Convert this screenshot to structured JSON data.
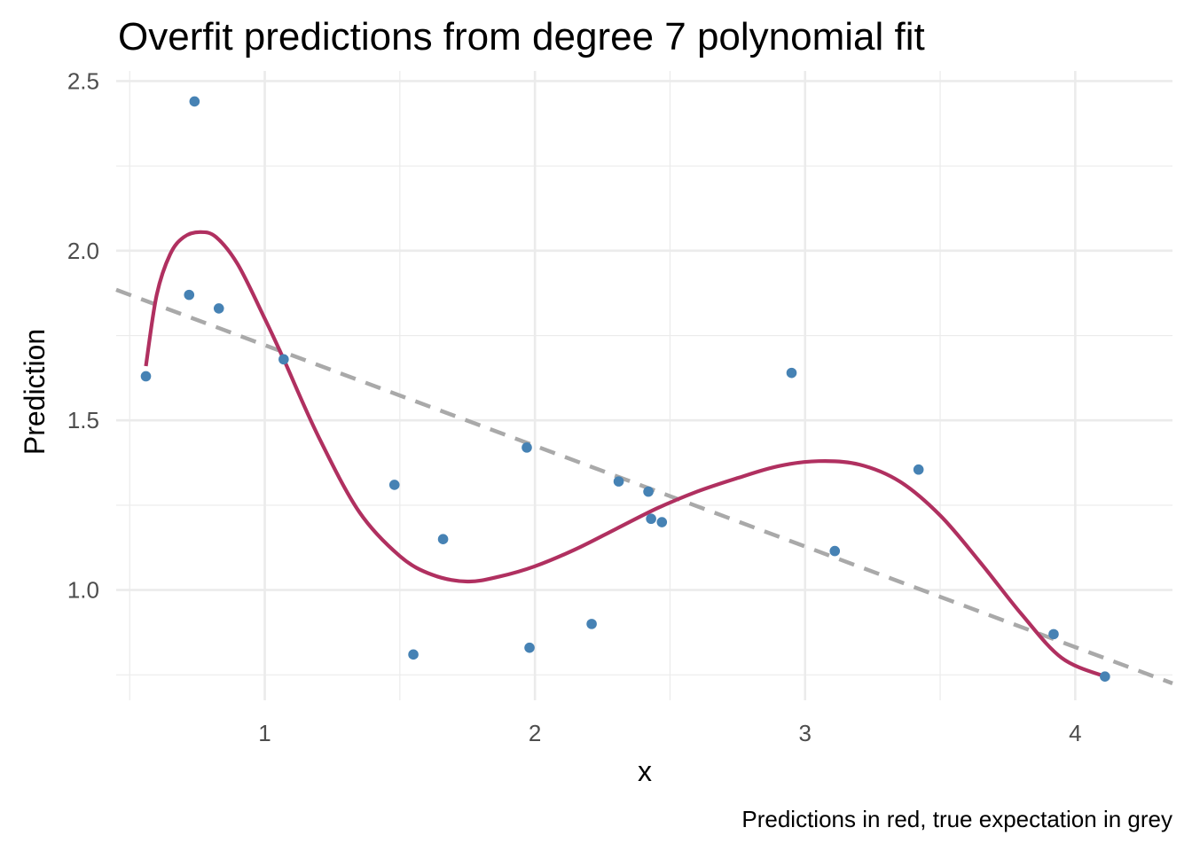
{
  "chart_data": {
    "type": "scatter",
    "title": "Overfit predictions from degree 7 polynomial fit",
    "xlabel": "x",
    "ylabel": "Prediction",
    "caption": "Predictions in red, true expectation in grey",
    "xlim": [
      0.45,
      4.36
    ],
    "ylim": [
      0.675,
      2.53
    ],
    "x_ticks": [
      1,
      2,
      3,
      4
    ],
    "x_tick_labels": [
      "1",
      "2",
      "3",
      "4"
    ],
    "y_ticks": [
      1.0,
      1.5,
      2.0,
      2.5
    ],
    "y_tick_labels": [
      "1.0",
      "1.5",
      "2.0",
      "2.5"
    ],
    "grid": true,
    "series": [
      {
        "type": "scatter",
        "color": "#4682b4",
        "points": [
          {
            "x": 0.56,
            "y": 1.63
          },
          {
            "x": 0.72,
            "y": 1.87
          },
          {
            "x": 0.74,
            "y": 2.44
          },
          {
            "x": 0.83,
            "y": 1.83
          },
          {
            "x": 1.07,
            "y": 1.68
          },
          {
            "x": 1.48,
            "y": 1.31
          },
          {
            "x": 1.55,
            "y": 0.81
          },
          {
            "x": 1.66,
            "y": 1.15
          },
          {
            "x": 1.97,
            "y": 1.42
          },
          {
            "x": 1.98,
            "y": 0.83
          },
          {
            "x": 2.21,
            "y": 0.9
          },
          {
            "x": 2.31,
            "y": 1.32
          },
          {
            "x": 2.42,
            "y": 1.29
          },
          {
            "x": 2.43,
            "y": 1.21
          },
          {
            "x": 2.47,
            "y": 1.2
          },
          {
            "x": 2.95,
            "y": 1.64
          },
          {
            "x": 3.11,
            "y": 1.115
          },
          {
            "x": 3.42,
            "y": 1.355
          },
          {
            "x": 3.92,
            "y": 0.87
          },
          {
            "x": 4.11,
            "y": 0.745
          }
        ]
      },
      {
        "type": "line",
        "style": "solid",
        "color": "#b03060",
        "x": [
          0.56,
          0.6,
          0.65,
          0.7,
          0.76,
          0.82,
          0.9,
          1.0,
          1.07,
          1.2,
          1.35,
          1.5,
          1.62,
          1.75,
          1.87,
          2.0,
          2.15,
          2.3,
          2.45,
          2.6,
          2.75,
          2.9,
          3.05,
          3.2,
          3.35,
          3.5,
          3.65,
          3.8,
          3.95,
          4.11
        ],
        "y": [
          1.66,
          1.87,
          1.99,
          2.04,
          2.055,
          2.04,
          1.96,
          1.8,
          1.68,
          1.45,
          1.23,
          1.1,
          1.045,
          1.025,
          1.04,
          1.07,
          1.12,
          1.18,
          1.24,
          1.29,
          1.33,
          1.365,
          1.38,
          1.37,
          1.32,
          1.22,
          1.08,
          0.93,
          0.8,
          0.745
        ]
      },
      {
        "type": "line",
        "style": "dashed",
        "color": "#a9a9a9",
        "x": [
          0.45,
          4.36
        ],
        "y": [
          1.885,
          0.725
        ]
      }
    ]
  }
}
